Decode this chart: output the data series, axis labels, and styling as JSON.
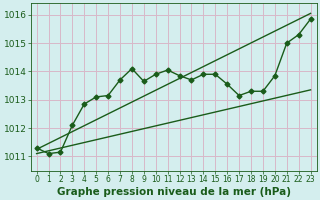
{
  "xlabel_label": "Graphe pression niveau de la mer (hPa)",
  "bg_color": "#d4eeee",
  "grid_color": "#d8b8c8",
  "line_color": "#1a5c1a",
  "xlim": [
    -0.5,
    23.5
  ],
  "ylim": [
    1010.5,
    1016.4
  ],
  "yticks": [
    1011,
    1012,
    1013,
    1014,
    1015,
    1016
  ],
  "xticks": [
    0,
    1,
    2,
    3,
    4,
    5,
    6,
    7,
    8,
    9,
    10,
    11,
    12,
    13,
    14,
    15,
    16,
    17,
    18,
    19,
    20,
    21,
    22,
    23
  ],
  "line1_x": [
    0,
    1,
    2,
    3,
    4,
    5,
    6,
    7,
    8,
    9,
    10,
    11,
    12,
    13,
    14,
    15,
    16,
    17,
    18,
    19,
    20,
    21,
    22,
    23
  ],
  "line1_y": [
    1011.3,
    1011.1,
    1011.15,
    1012.1,
    1012.85,
    1013.1,
    1013.15,
    1013.7,
    1014.1,
    1013.65,
    1013.9,
    1014.05,
    1013.85,
    1013.7,
    1013.9,
    1013.9,
    1013.55,
    1013.15,
    1013.3,
    1013.3,
    1013.85,
    1015.0,
    1015.3,
    1015.85
  ],
  "line2_x": [
    0,
    23
  ],
  "line2_y": [
    1011.1,
    1013.35
  ],
  "line3_x": [
    0,
    23
  ],
  "line3_y": [
    1011.25,
    1016.05
  ],
  "font_size_tick": 6,
  "font_size_label": 7.5
}
